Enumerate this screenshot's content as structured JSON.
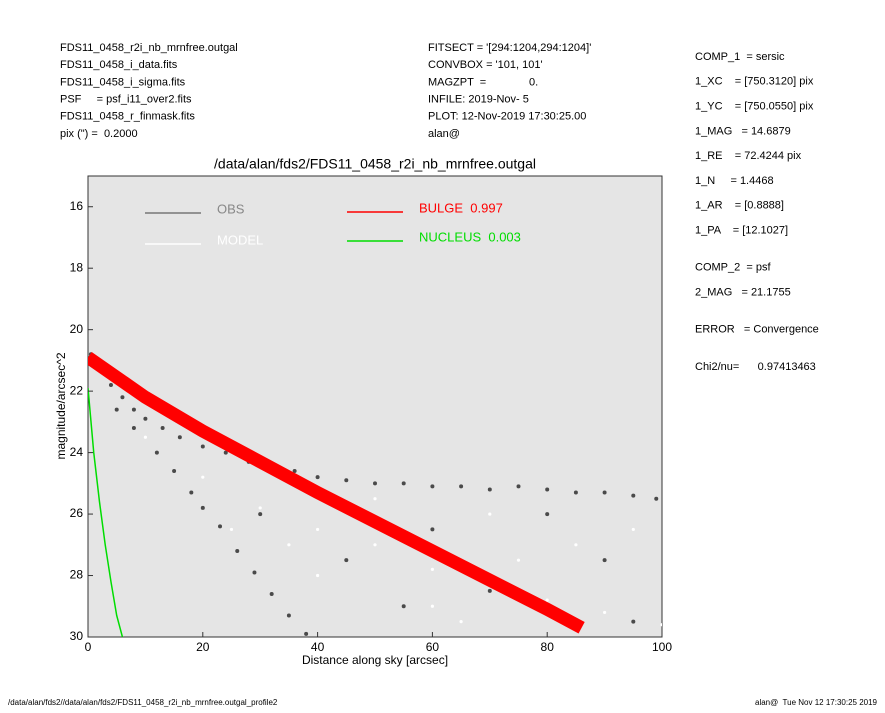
{
  "header": {
    "left": [
      "FDS11_0458_r2i_nb_mrnfree.outgal",
      "FDS11_0458_i_data.fits",
      "FDS11_0458_i_sigma.fits",
      "PSF     = psf_i11_over2.fits",
      "FDS11_0458_r_finmask.fits",
      "pix (\") =  0.2000"
    ],
    "center": [
      "FITSECT = '[294:1204,294:1204]'",
      "CONVBOX = '101, 101'",
      "MAGZPT  =              0.",
      "INFILE: 2019-Nov- 5",
      "PLOT: 12-Nov-2019 17:30:25.00",
      "alan@"
    ]
  },
  "params": [
    [
      "COMP_1  = sersic",
      "1_XC    = [750.3120] pix",
      "1_YC    = [750.0550] pix",
      "1_MAG   = 14.6879",
      "1_RE    = 72.4244 pix",
      "1_N     = 1.4468",
      "1_AR    = [0.8888]",
      "1_PA    = [12.1027]"
    ],
    [
      "COMP_2  = psf",
      "2_MAG   = 21.1755"
    ],
    [
      "ERROR   = Convergence"
    ],
    [
      "Chi2/nu=      0.97413463"
    ]
  ],
  "footer": {
    "left": "/data/alan/fds2//data/alan/fds2/FDS11_0458_r2i_nb_mrnfree.outgal_profile2",
    "right": "alan@  Tue Nov 12 17:30:25 2019"
  },
  "chart_data": {
    "type": "scatter",
    "title": "/data/alan/fds2/FDS11_0458_r2i_nb_mrnfree.outgal",
    "x_label": "Distance along sky [arcsec]",
    "y_label": "magnitude/arcsec^2",
    "xlim": [
      0,
      100
    ],
    "ylim": [
      30,
      15
    ],
    "xticks": [
      0,
      20,
      40,
      60,
      80,
      100
    ],
    "yticks": [
      16,
      18,
      20,
      22,
      24,
      26,
      28,
      30
    ],
    "series": [
      {
        "name": "OBS",
        "color": "#4a4a4a",
        "type": "scatter",
        "x": [
          0.5,
          2,
          4,
          6,
          8,
          10,
          13,
          16,
          20,
          24,
          28,
          32,
          36,
          40,
          45,
          50,
          55,
          60,
          65,
          70,
          75,
          80,
          85,
          90,
          95,
          99,
          5,
          8,
          12,
          15,
          18,
          20,
          23,
          26,
          29,
          32,
          35,
          38,
          30,
          45,
          60,
          80,
          90,
          55,
          70,
          95
        ],
        "values": [
          20.8,
          21.3,
          21.8,
          22.2,
          22.6,
          22.9,
          23.2,
          23.5,
          23.8,
          24.0,
          24.3,
          24.4,
          24.6,
          24.8,
          24.9,
          25.0,
          25.0,
          25.1,
          25.1,
          25.2,
          25.1,
          25.2,
          25.3,
          25.3,
          25.4,
          25.5,
          22.6,
          23.2,
          24.0,
          24.6,
          25.3,
          25.8,
          26.4,
          27.2,
          27.9,
          28.6,
          29.3,
          29.9,
          26,
          27.5,
          26.5,
          26,
          27.5,
          29,
          28.5,
          29.5
        ]
      },
      {
        "name": "MODEL",
        "color": "#ffffff",
        "type": "scatter",
        "x": [
          10,
          20,
          30,
          40,
          50,
          60,
          70,
          80,
          90,
          100,
          40,
          60,
          85,
          95,
          35,
          50,
          70,
          25,
          65,
          75
        ],
        "values": [
          23.5,
          24.8,
          25.8,
          26.5,
          27,
          27.8,
          28.3,
          28.8,
          29.2,
          29.6,
          28,
          29,
          27,
          26.5,
          27,
          25.5,
          26,
          26.5,
          29.5,
          27.5
        ]
      },
      {
        "name": "BULGE  0.997",
        "color": "#ff0000",
        "type": "band",
        "x": [
          0,
          10,
          20,
          40,
          60,
          80,
          86
        ],
        "values": [
          20.9,
          22.2,
          23.3,
          25.3,
          27.2,
          29.1,
          29.7
        ]
      },
      {
        "name": "NUCLEUS  0.003",
        "color": "#00dd00",
        "type": "line",
        "x": [
          0,
          1,
          2,
          3,
          4,
          5,
          6
        ],
        "values": [
          21.9,
          24,
          25.6,
          27,
          28.2,
          29.3,
          30
        ]
      }
    ]
  }
}
